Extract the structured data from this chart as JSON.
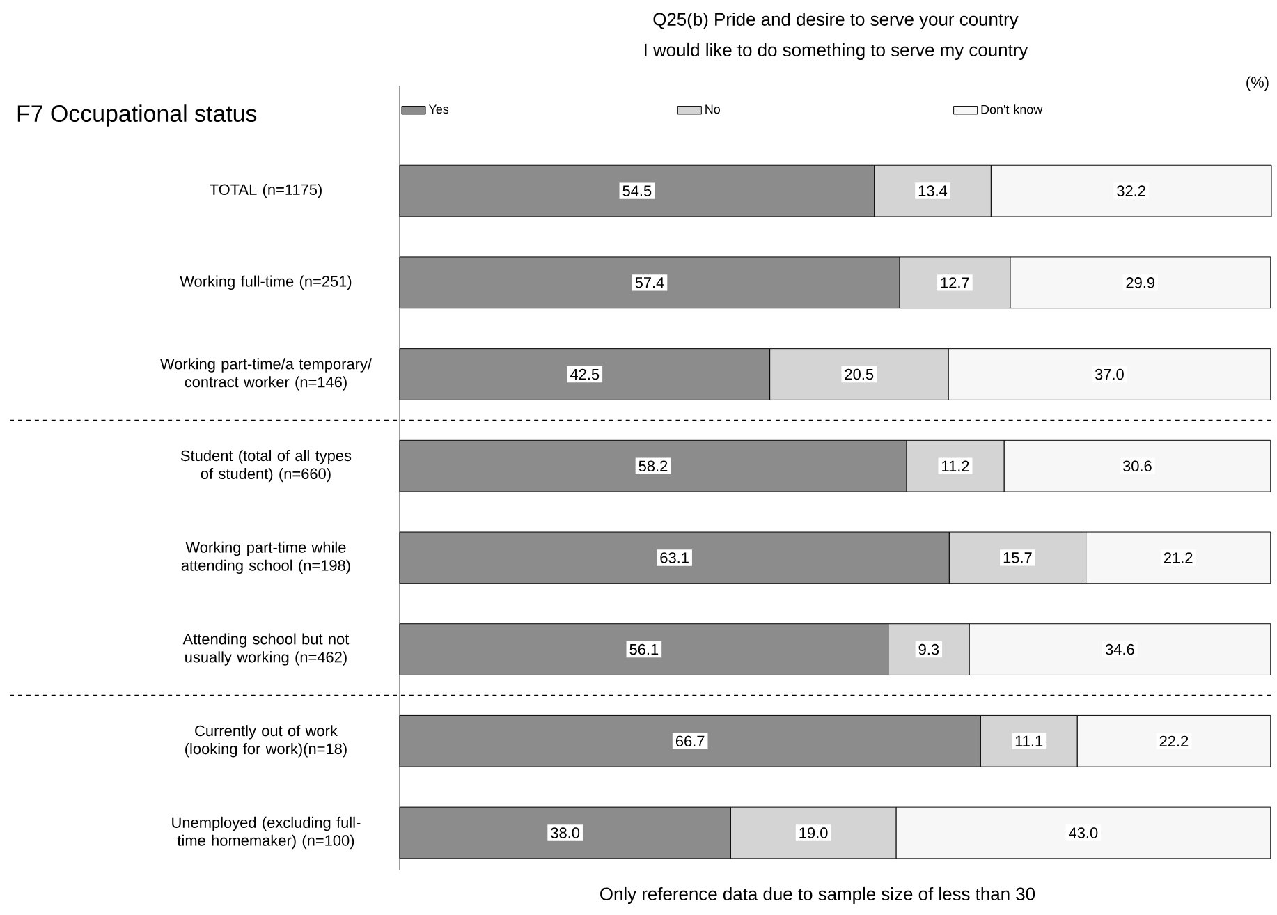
{
  "chart_data": {
    "type": "bar",
    "orientation": "horizontal",
    "stacked": true,
    "title": "Q25(b) Pride and desire to serve your country",
    "subtitle": "I would like to do something to serve my country",
    "ylabel": "F7 Occupational status",
    "annotations": [
      "(%)",
      "Only reference data due to sample size of less than 30"
    ],
    "categories": [
      "TOTAL (n=1175)",
      "Working full-time (n=251)",
      "Working part-time/a temporary/ contract worker (n=146)",
      "Student (total of all types of student) (n=660)",
      "Working part-time while attending school (n=198)",
      "Attending school but not usually working (n=462)",
      "Currently out of work (looking for work)(n=18)",
      "Unemployed (excluding full-time homemaker) (n=100)"
    ],
    "series": [
      {
        "name": "Yes",
        "color": "#8c8c8c",
        "values": [
          54.5,
          57.4,
          42.5,
          58.2,
          63.1,
          56.1,
          66.7,
          38.0
        ],
        "value_labels": [
          "54.5",
          "57.4",
          "42.5",
          "58.2",
          "63.1",
          "56.1",
          "66.7",
          "38.0"
        ]
      },
      {
        "name": "No",
        "color": "#d4d4d4",
        "values": [
          13.4,
          12.7,
          20.5,
          11.2,
          15.7,
          9.3,
          11.1,
          19.0
        ],
        "value_labels": [
          "13.4",
          "12.7",
          "20.5",
          "11.2",
          "15.7",
          "9.3",
          "11.1",
          "19.0"
        ]
      },
      {
        "name": "Don't know",
        "color": "#f7f7f7",
        "values": [
          32.2,
          29.9,
          37.0,
          30.6,
          21.2,
          34.6,
          22.2,
          43.0
        ],
        "value_labels": [
          "32.2",
          "29.9",
          "37.0",
          "30.6",
          "21.2",
          "34.6",
          "22.2",
          "43.0"
        ]
      }
    ],
    "legend": "top",
    "tick_labels": "y"
  }
}
